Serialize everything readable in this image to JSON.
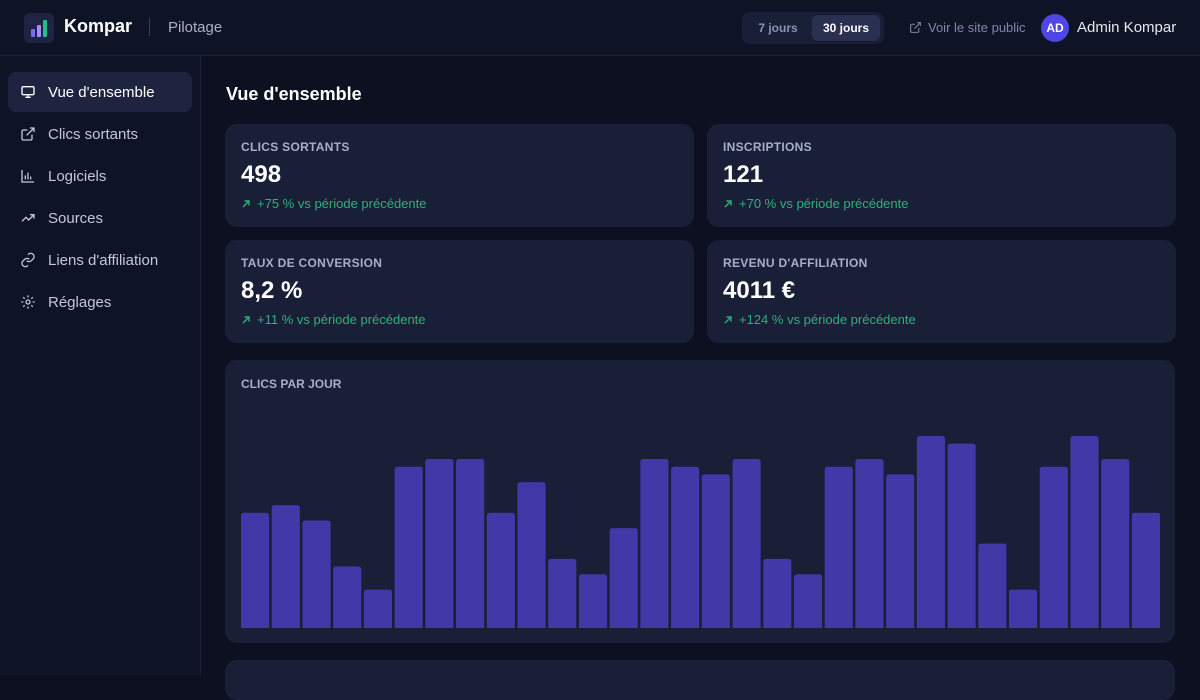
{
  "header": {
    "brand": "Kompar",
    "section": "Pilotage",
    "periods": [
      "7 jours",
      "30 jours"
    ],
    "active_period": 1,
    "public_link": "Voir le site public",
    "avatar": "AD",
    "user": "Admin Kompar"
  },
  "nav": {
    "items": [
      "Vue d'ensemble",
      "Clics sortants",
      "Logiciels",
      "Sources",
      "Liens d'affiliation",
      "Réglages"
    ],
    "active": 0
  },
  "page_title": "Vue d'ensemble",
  "kpis": [
    {
      "label": "CLICS SORTANTS",
      "value": "498",
      "change": "+75 % vs période précédente"
    },
    {
      "label": "INSCRIPTIONS",
      "value": "121",
      "change": "+70 % vs période précédente"
    },
    {
      "label": "TAUX DE CONVERSION",
      "value": "8,2 %",
      "change": "+11 % vs période précédente"
    },
    {
      "label": "REVENU D'AFFILIATION",
      "value": "4011 €",
      "change": "+124 % vs période précédente"
    }
  ],
  "chart_data": {
    "type": "bar",
    "title": "CLICS PAR JOUR",
    "color": "#4338a8",
    "values": [
      15,
      16,
      14,
      8,
      5,
      21,
      22,
      22,
      15,
      19,
      9,
      7,
      13,
      22,
      21,
      20,
      22,
      9,
      7,
      21,
      22,
      20,
      25,
      24,
      11,
      5,
      21,
      25,
      22,
      15
    ]
  }
}
